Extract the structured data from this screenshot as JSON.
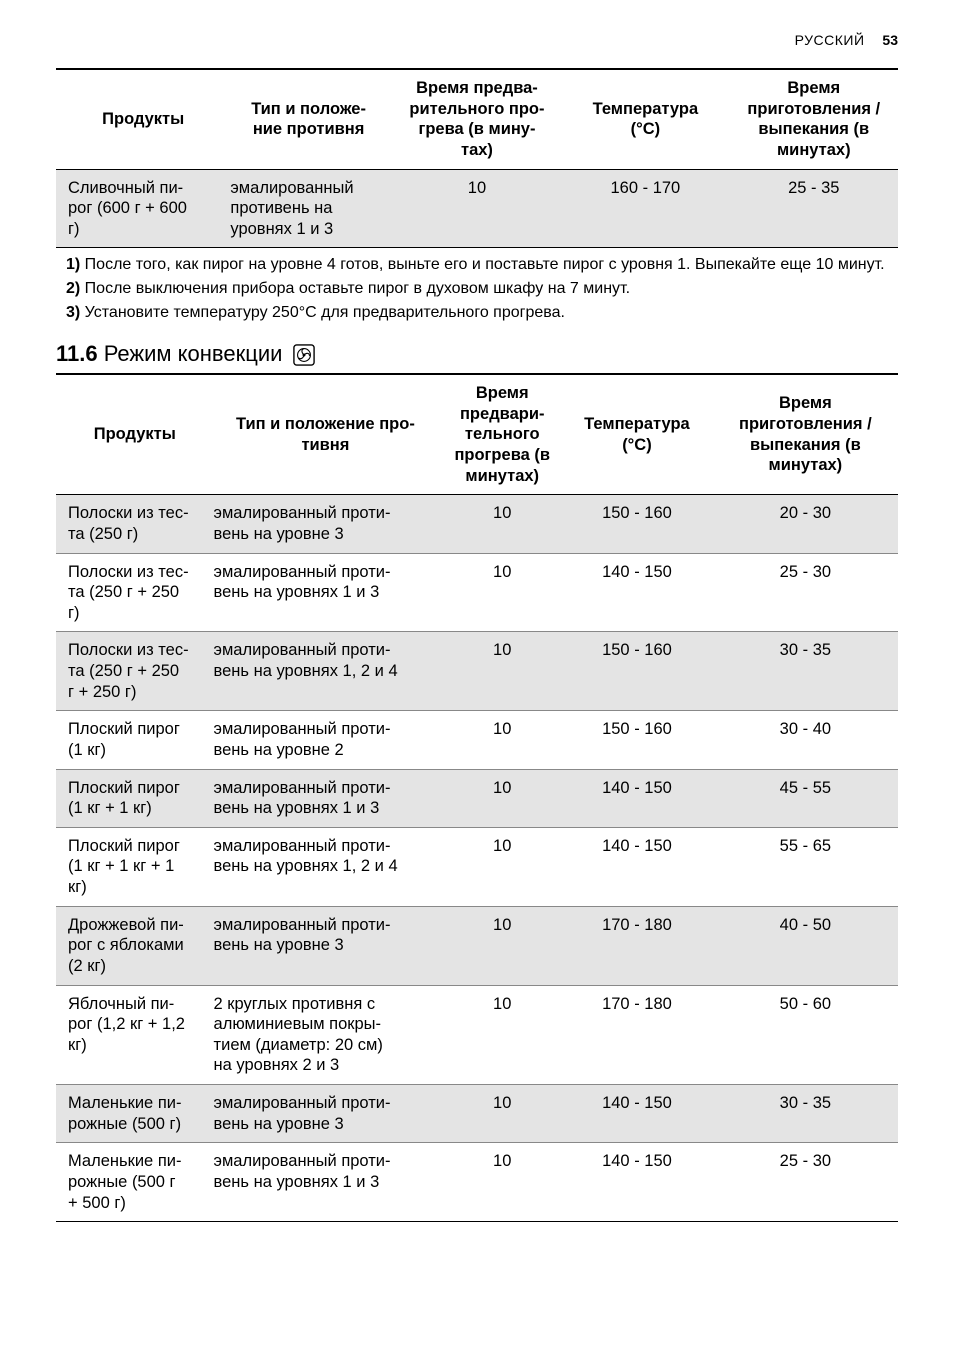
{
  "header": {
    "language": "РУССКИЙ",
    "page_number": "53"
  },
  "table1": {
    "columns": {
      "c1": "Продукты",
      "c2": "Тип и положе-\nние противня",
      "c3": "Время предва-\nрительного про-\nгрева (в мину-\nтах)",
      "c4": "Температура\n(°C)",
      "c5": "Время\nприготовления /\nвыпекания (в\nминутах)"
    },
    "rows": [
      {
        "c1": "Сливочный пи-\nрог (600 г + 600\nг)",
        "c2": "эмалированный\nпротивень на\nуровнях 1 и 3",
        "c3": "10",
        "c4": "160 - 170",
        "c5": "25 - 35"
      }
    ]
  },
  "footnotes": {
    "f1_num": "1)",
    "f1_text": " После того, как пирог на уровне 4 готов, выньте его и поставьте пирог с уровня 1. Выпекайте еще 10 минут.",
    "f2_num": "2)",
    "f2_text": " После выключения прибора оставьте пирог в духовом шкафу на 7 минут.",
    "f3_num": "3)",
    "f3_text": " Установите температуру 250°C для предварительного прогрева."
  },
  "section": {
    "number": "11.6",
    "title": " Режим конвекции "
  },
  "table2": {
    "columns": {
      "c1": "Продукты",
      "c2": "Тип и положение про-\nтивня",
      "c3": "Время\nпредвари-\nтельного\nпрогрева (в\nминутах)",
      "c4": "Температура\n(°C)",
      "c5": "Время\nприготовления /\nвыпекания (в\nминутах)"
    },
    "rows": [
      {
        "c1": "Полоски из тес-\nта (250 г)",
        "c2": "эмалированный проти-\nвень на уровне 3",
        "c3": "10",
        "c4": "150 - 160",
        "c5": "20 - 30"
      },
      {
        "c1": "Полоски из тес-\nта (250 г + 250\nг)",
        "c2": "эмалированный проти-\nвень на уровнях 1 и 3",
        "c3": "10",
        "c4": "140 - 150",
        "c5": "25 - 30"
      },
      {
        "c1": "Полоски из тес-\nта (250 г + 250\nг + 250 г)",
        "c2": "эмалированный проти-\nвень на уровнях 1, 2 и 4",
        "c3": "10",
        "c4": "150 - 160",
        "c5": "30 - 35"
      },
      {
        "c1": "Плоский пирог\n(1 кг)",
        "c2": "эмалированный проти-\nвень на уровне 2",
        "c3": "10",
        "c4": "150 - 160",
        "c5": "30 - 40"
      },
      {
        "c1": "Плоский пирог\n(1 кг + 1 кг)",
        "c2": "эмалированный проти-\nвень на уровнях 1 и 3",
        "c3": "10",
        "c4": "140 - 150",
        "c5": "45 - 55"
      },
      {
        "c1": "Плоский пирог\n(1 кг + 1 кг + 1\nкг)",
        "c2": "эмалированный проти-\nвень на уровнях 1, 2 и 4",
        "c3": "10",
        "c4": "140 - 150",
        "c5": "55 - 65"
      },
      {
        "c1": "Дрожжевой пи-\nрог с яблоками\n(2 кг)",
        "c2": "эмалированный проти-\nвень на уровне 3",
        "c3": "10",
        "c4": "170 - 180",
        "c5": "40 - 50"
      },
      {
        "c1": "Яблочный пи-\nрог (1,2 кг + 1,2\nкг)",
        "c2": "2 круглых противня с\nалюминиевым покры-\nтием (диаметр: 20 см)\nна уровнях 2 и 3",
        "c3": "10",
        "c4": "170 - 180",
        "c5": "50 - 60"
      },
      {
        "c1": "Маленькие пи-\nрожные (500 г)",
        "c2": "эмалированный проти-\nвень на уровне 3",
        "c3": "10",
        "c4": "140 - 150",
        "c5": "30 - 35"
      },
      {
        "c1": "Маленькие пи-\nрожные (500 г\n+ 500 г)",
        "c2": "эмалированный проти-\nвень на уровнях 1 и 3",
        "c3": "10",
        "c4": "140 - 150",
        "c5": "25 - 30"
      }
    ]
  }
}
